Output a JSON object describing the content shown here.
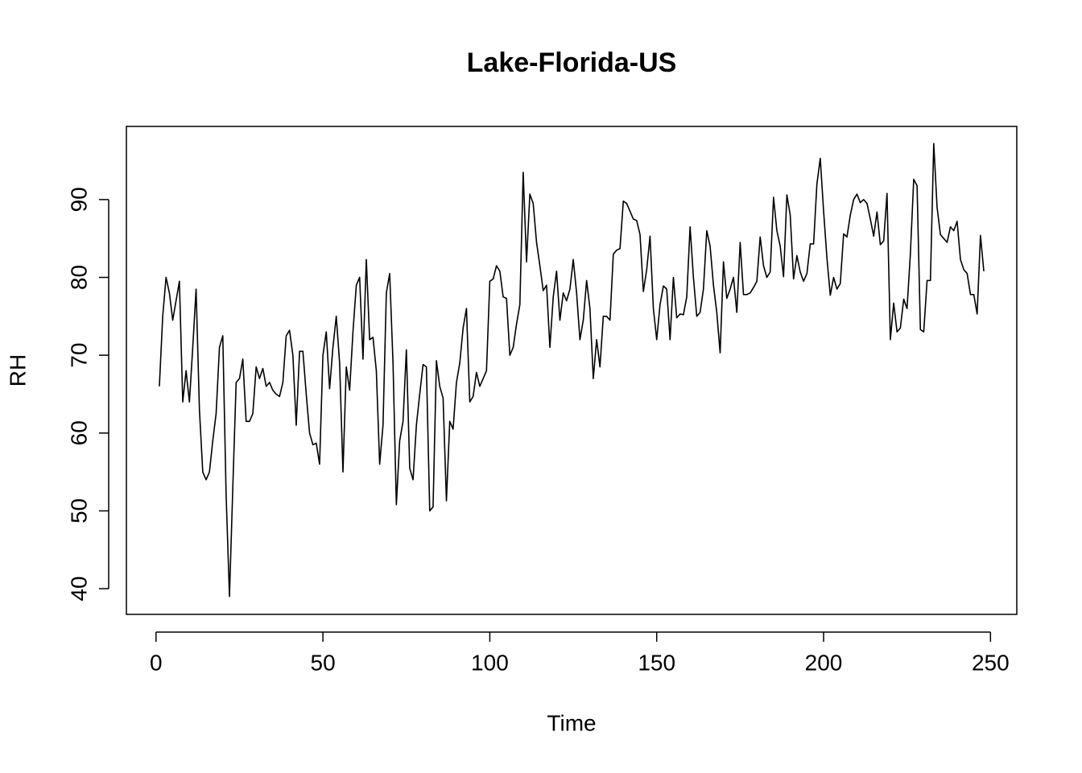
{
  "chart_data": {
    "type": "line",
    "title": "Lake-Florida-US",
    "x_label": "Time",
    "y_label": "RH",
    "xlim": [
      -8.88,
      257.88
    ],
    "ylim": [
      36.7,
      99.4
    ],
    "xticks": [
      0,
      50,
      100,
      150,
      200,
      250
    ],
    "yticks": [
      40,
      50,
      60,
      70,
      80,
      90
    ],
    "x": [
      1,
      2,
      3,
      4,
      5,
      6,
      7,
      8,
      9,
      10,
      11,
      12,
      13,
      14,
      15,
      16,
      17,
      18,
      19,
      20,
      21,
      22,
      23,
      24,
      25,
      26,
      27,
      28,
      29,
      30,
      31,
      32,
      33,
      34,
      35,
      36,
      37,
      38,
      39,
      40,
      41,
      42,
      43,
      44,
      45,
      46,
      47,
      48,
      49,
      50,
      51,
      52,
      53,
      54,
      55,
      56,
      57,
      58,
      59,
      60,
      61,
      62,
      63,
      64,
      65,
      66,
      67,
      68,
      69,
      70,
      71,
      72,
      73,
      74,
      75,
      76,
      77,
      78,
      79,
      80,
      81,
      82,
      83,
      84,
      85,
      86,
      87,
      88,
      89,
      90,
      91,
      92,
      93,
      94,
      95,
      96,
      97,
      98,
      99,
      100,
      101,
      102,
      103,
      104,
      105,
      106,
      107,
      108,
      109,
      110,
      111,
      112,
      113,
      114,
      115,
      116,
      117,
      118,
      119,
      120,
      121,
      122,
      123,
      124,
      125,
      126,
      127,
      128,
      129,
      130,
      131,
      132,
      133,
      134,
      135,
      136,
      137,
      138,
      139,
      140,
      141,
      142,
      143,
      144,
      145,
      146,
      147,
      148,
      149,
      150,
      151,
      152,
      153,
      154,
      155,
      156,
      157,
      158,
      159,
      160,
      161,
      162,
      163,
      164,
      165,
      166,
      167,
      168,
      169,
      170,
      171,
      172,
      173,
      174,
      175,
      176,
      177,
      178,
      179,
      180,
      181,
      182,
      183,
      184,
      185,
      186,
      187,
      188,
      189,
      190,
      191,
      192,
      193,
      194,
      195,
      196,
      197,
      198,
      199,
      200,
      201,
      202,
      203,
      204,
      205,
      206,
      207,
      208,
      209,
      210,
      211,
      212,
      213,
      214,
      215,
      216,
      217,
      218,
      219,
      220,
      221,
      222,
      223,
      224,
      225,
      226,
      227,
      228,
      229,
      230,
      231,
      232,
      233,
      234,
      235,
      236,
      237,
      238,
      239,
      240,
      241,
      242,
      243,
      244,
      245,
      246,
      247,
      248
    ],
    "series": [
      {
        "color": "#000000",
        "values": [
          66,
          75,
          80,
          78,
          74.5,
          77,
          79.5,
          64,
          68,
          64,
          71,
          78.5,
          63,
          55,
          54,
          55,
          59,
          62.5,
          71,
          72.5,
          52,
          39,
          53,
          66.5,
          67,
          69.5,
          61.5,
          61.5,
          62.5,
          68.5,
          67,
          68.3,
          66,
          66.5,
          65.5,
          65,
          64.7,
          66.5,
          72.5,
          73.2,
          70,
          61,
          70.5,
          70.5,
          65,
          60,
          58.5,
          58.7,
          56,
          70,
          73,
          65.7,
          71,
          75,
          69,
          55,
          68.5,
          65.5,
          73,
          79,
          80,
          69.5,
          82.3,
          72,
          72.3,
          68,
          56,
          61,
          78,
          80.5,
          69,
          50.8,
          59,
          61.5,
          70.7,
          55.5,
          54,
          61,
          65,
          68.8,
          68.5,
          50,
          50.5,
          69.3,
          66,
          64.5,
          51.3,
          61.5,
          60.5,
          66.5,
          69,
          73.5,
          76,
          64,
          64.7,
          67.8,
          66,
          67,
          68,
          79.5,
          79.8,
          81.5,
          80.8,
          77.5,
          77.3,
          70,
          71,
          74,
          76.5,
          93.5,
          82,
          90.7,
          89.5,
          84.5,
          81.5,
          78.3,
          79,
          71,
          77.5,
          80.8,
          74.5,
          78,
          77,
          78.5,
          82.3,
          78,
          72,
          74.5,
          79.6,
          76,
          67,
          72,
          68.5,
          75,
          75,
          74.5,
          83,
          83.5,
          83.7,
          89.8,
          89.5,
          88.5,
          87.5,
          87.3,
          85.5,
          78.2,
          81,
          85.3,
          76,
          72,
          76.5,
          78.9,
          78.5,
          72,
          80,
          74.8,
          75.3,
          75.2,
          77.5,
          86.5,
          80,
          75,
          75.5,
          78.5,
          86,
          84,
          79,
          75.5,
          70.3,
          82,
          77.3,
          78.5,
          80,
          75.5,
          84.5,
          77.8,
          77.8,
          78,
          78.7,
          79.5,
          85.2,
          81.5,
          80,
          80.7,
          90.3,
          86,
          84,
          80.1,
          90.6,
          88,
          79.8,
          82.8,
          80.7,
          79.5,
          80.5,
          84.3,
          84.3,
          92,
          95.3,
          88.5,
          82.5,
          77.7,
          80,
          78.5,
          79.2,
          85.6,
          85.2,
          88,
          90,
          90.7,
          89.6,
          90,
          89.5,
          87.5,
          85.3,
          88.4,
          84.2,
          84.7,
          90.8,
          72,
          76.7,
          73,
          73.5,
          77.2,
          76,
          83,
          92.6,
          91.8,
          73.3,
          73,
          79.6,
          79.6,
          97.2,
          89,
          85.5,
          85,
          84.5,
          86.5,
          86,
          87.2,
          82.3,
          81,
          80.5,
          77.8,
          77.8,
          75.3,
          85.4,
          80.8
        ]
      }
    ]
  }
}
